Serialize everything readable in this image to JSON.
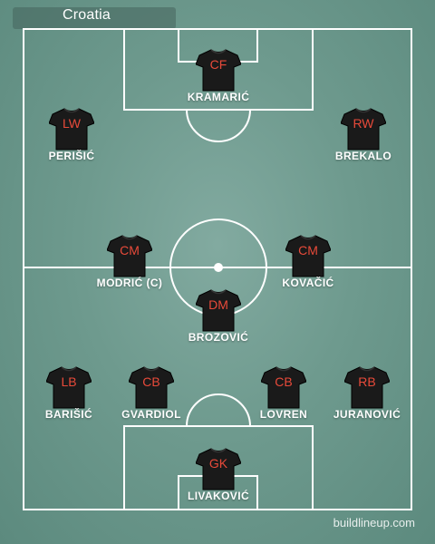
{
  "team": {
    "name": "Croatia"
  },
  "colors": {
    "pitch": "#6e9a8e",
    "lines": "#ffffff",
    "shirt": "#1a1a1a",
    "position_text": "#e84a3a"
  },
  "players": [
    {
      "position": "CF",
      "name": "KRAMARIĆ"
    },
    {
      "position": "LW",
      "name": "PERIŠIĆ"
    },
    {
      "position": "RW",
      "name": "BREKALO"
    },
    {
      "position": "CM",
      "name": "MODRIĆ (C)"
    },
    {
      "position": "CM",
      "name": "KOVAČIĆ"
    },
    {
      "position": "DM",
      "name": "BROZOVIĆ"
    },
    {
      "position": "LB",
      "name": "BARIŠIĆ"
    },
    {
      "position": "CB",
      "name": "GVARDIOL"
    },
    {
      "position": "CB",
      "name": "LOVREN"
    },
    {
      "position": "RB",
      "name": "JURANOVIĆ"
    },
    {
      "position": "GK",
      "name": "LIVAKOVIĆ"
    }
  ],
  "footer": {
    "watermark": "buildlineup.com"
  }
}
